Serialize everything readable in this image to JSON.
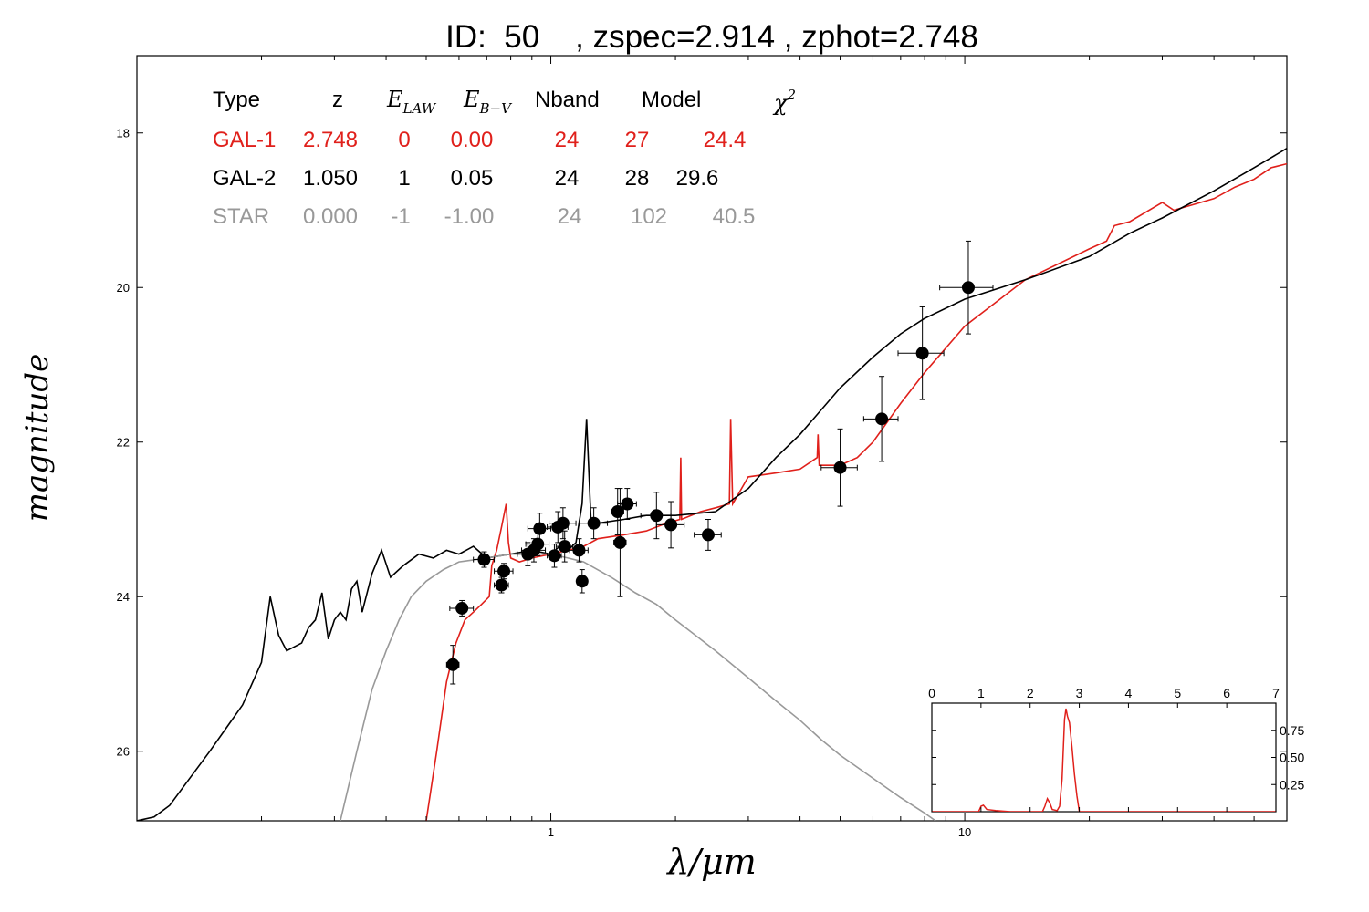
{
  "chart_data": [
    {
      "type": "line",
      "title": "ID:  50    , zspec=2.914 , zphot=2.748",
      "xlabel": "λ/μm",
      "ylabel": "magnitude",
      "x_scale": "log",
      "xlim": [
        0.1,
        60
      ],
      "ylim": [
        26.9,
        17.0
      ],
      "y_inverted": true,
      "grid": false,
      "x_ticks": [
        1,
        10
      ],
      "x_tick_labels": [
        "1",
        "10"
      ],
      "y_ticks": [
        18,
        20,
        22,
        24,
        26
      ],
      "y_tick_labels": [
        "18",
        "20",
        "22",
        "24",
        "26"
      ],
      "legend_table": {
        "headers": [
          "Type",
          "z",
          "E_LAW",
          "E_B−V",
          "Nband",
          "Model",
          "χ²"
        ],
        "rows": [
          {
            "cells": [
              "GAL-1",
              "2.748",
              "0",
              "0.00",
              "24",
              "27",
              "24.4"
            ],
            "color": "#e0201b"
          },
          {
            "cells": [
              "GAL-2",
              "1.050",
              "1",
              "0.05",
              "24",
              "28",
              "29.6"
            ],
            "color": "#000000"
          },
          {
            "cells": [
              "STAR",
              "0.000",
              "-1",
              "-1.00",
              "24",
              "102",
              "40.5"
            ],
            "color": "#999999"
          }
        ]
      },
      "series": [
        {
          "name": "GAL-1",
          "color": "#e0201b",
          "points": [
            [
              0.5,
              26.9
            ],
            [
              0.53,
              26.0
            ],
            [
              0.56,
              25.1
            ],
            [
              0.59,
              24.6
            ],
            [
              0.62,
              24.3
            ],
            [
              0.65,
              24.2
            ],
            [
              0.68,
              24.1
            ],
            [
              0.71,
              24.0
            ],
            [
              0.72,
              23.6
            ],
            [
              0.74,
              23.4
            ],
            [
              0.76,
              23.1
            ],
            [
              0.78,
              22.8
            ],
            [
              0.79,
              23.3
            ],
            [
              0.8,
              23.5
            ],
            [
              0.84,
              23.55
            ],
            [
              0.9,
              23.5
            ],
            [
              1.0,
              23.45
            ],
            [
              1.1,
              23.4
            ],
            [
              1.2,
              23.35
            ],
            [
              1.3,
              23.25
            ],
            [
              1.5,
              23.2
            ],
            [
              1.7,
              23.15
            ],
            [
              1.9,
              23.05
            ],
            [
              2.05,
              23.0
            ],
            [
              2.06,
              22.2
            ],
            [
              2.07,
              23.0
            ],
            [
              2.3,
              22.9
            ],
            [
              2.5,
              22.85
            ],
            [
              2.7,
              22.8
            ],
            [
              2.72,
              21.7
            ],
            [
              2.75,
              22.8
            ],
            [
              3.0,
              22.45
            ],
            [
              3.5,
              22.4
            ],
            [
              4.0,
              22.35
            ],
            [
              4.4,
              22.2
            ],
            [
              4.42,
              21.9
            ],
            [
              4.45,
              22.3
            ],
            [
              5.0,
              22.3
            ],
            [
              5.5,
              22.2
            ],
            [
              6.0,
              22.0
            ],
            [
              7.0,
              21.5
            ],
            [
              8.0,
              21.1
            ],
            [
              10.0,
              20.5
            ],
            [
              14.0,
              19.9
            ],
            [
              20.0,
              19.5
            ],
            [
              22.0,
              19.4
            ],
            [
              23.0,
              19.2
            ],
            [
              25.0,
              19.15
            ],
            [
              30.0,
              18.9
            ],
            [
              32.0,
              19.0
            ],
            [
              40.0,
              18.85
            ],
            [
              45.0,
              18.7
            ],
            [
              50.0,
              18.6
            ],
            [
              55.0,
              18.45
            ],
            [
              60.0,
              18.4
            ]
          ]
        },
        {
          "name": "GAL-2",
          "color": "#000000",
          "points": [
            [
              0.1,
              26.9
            ],
            [
              0.11,
              26.85
            ],
            [
              0.12,
              26.7
            ],
            [
              0.15,
              26.0
            ],
            [
              0.18,
              25.4
            ],
            [
              0.2,
              24.85
            ],
            [
              0.21,
              24.0
            ],
            [
              0.22,
              24.5
            ],
            [
              0.23,
              24.7
            ],
            [
              0.25,
              24.6
            ],
            [
              0.26,
              24.4
            ],
            [
              0.27,
              24.3
            ],
            [
              0.28,
              23.95
            ],
            [
              0.29,
              24.55
            ],
            [
              0.3,
              24.3
            ],
            [
              0.31,
              24.2
            ],
            [
              0.32,
              24.3
            ],
            [
              0.33,
              23.9
            ],
            [
              0.34,
              23.8
            ],
            [
              0.35,
              24.2
            ],
            [
              0.37,
              23.7
            ],
            [
              0.39,
              23.4
            ],
            [
              0.41,
              23.75
            ],
            [
              0.44,
              23.6
            ],
            [
              0.48,
              23.45
            ],
            [
              0.52,
              23.5
            ],
            [
              0.56,
              23.4
            ],
            [
              0.6,
              23.45
            ],
            [
              0.65,
              23.35
            ],
            [
              0.7,
              23.5
            ],
            [
              0.8,
              23.45
            ],
            [
              0.9,
              23.4
            ],
            [
              1.0,
              23.45
            ],
            [
              1.05,
              23.35
            ],
            [
              1.1,
              23.4
            ],
            [
              1.15,
              23.3
            ],
            [
              1.19,
              22.8
            ],
            [
              1.22,
              21.7
            ],
            [
              1.25,
              23.0
            ],
            [
              1.3,
              23.05
            ],
            [
              1.5,
              23.0
            ],
            [
              1.7,
              22.95
            ],
            [
              2.0,
              22.95
            ],
            [
              2.5,
              22.9
            ],
            [
              3.0,
              22.6
            ],
            [
              3.5,
              22.2
            ],
            [
              4.0,
              21.9
            ],
            [
              5.0,
              21.3
            ],
            [
              6.0,
              20.9
            ],
            [
              7.0,
              20.6
            ],
            [
              8.0,
              20.4
            ],
            [
              10.0,
              20.15
            ],
            [
              14.0,
              19.9
            ],
            [
              20.0,
              19.6
            ],
            [
              25.0,
              19.3
            ],
            [
              30.0,
              19.1
            ],
            [
              40.0,
              18.75
            ],
            [
              50.0,
              18.45
            ],
            [
              60.0,
              18.2
            ]
          ]
        },
        {
          "name": "STAR",
          "color": "#999999",
          "points": [
            [
              0.31,
              26.9
            ],
            [
              0.34,
              26.0
            ],
            [
              0.37,
              25.2
            ],
            [
              0.4,
              24.7
            ],
            [
              0.43,
              24.3
            ],
            [
              0.46,
              24.0
            ],
            [
              0.5,
              23.8
            ],
            [
              0.55,
              23.65
            ],
            [
              0.6,
              23.55
            ],
            [
              0.7,
              23.5
            ],
            [
              0.8,
              23.45
            ],
            [
              0.9,
              23.45
            ],
            [
              1.0,
              23.45
            ],
            [
              1.1,
              23.5
            ],
            [
              1.2,
              23.55
            ],
            [
              1.4,
              23.75
            ],
            [
              1.6,
              23.95
            ],
            [
              1.8,
              24.1
            ],
            [
              2.0,
              24.3
            ],
            [
              2.5,
              24.7
            ],
            [
              3.0,
              25.05
            ],
            [
              3.5,
              25.35
            ],
            [
              4.0,
              25.6
            ],
            [
              4.5,
              25.85
            ],
            [
              5.0,
              26.05
            ],
            [
              6.0,
              26.35
            ],
            [
              7.0,
              26.6
            ],
            [
              8.0,
              26.8
            ],
            [
              8.5,
              26.9
            ]
          ]
        }
      ],
      "observations": [
        {
          "x": 0.58,
          "y": 24.88,
          "xerr": 0.02,
          "yerr": 0.25
        },
        {
          "x": 0.61,
          "y": 24.15,
          "xerr": 0.04,
          "yerr": 0.1
        },
        {
          "x": 0.69,
          "y": 23.52,
          "xerr": 0.04,
          "yerr": 0.1
        },
        {
          "x": 0.76,
          "y": 23.85,
          "xerr": 0.03,
          "yerr": 0.1
        },
        {
          "x": 0.77,
          "y": 23.67,
          "xerr": 0.04,
          "yerr": 0.1
        },
        {
          "x": 0.88,
          "y": 23.45,
          "xerr": 0.05,
          "yerr": 0.15
        },
        {
          "x": 0.91,
          "y": 23.4,
          "xerr": 0.06,
          "yerr": 0.15
        },
        {
          "x": 0.93,
          "y": 23.32,
          "xerr": 0.06,
          "yerr": 0.15
        },
        {
          "x": 0.94,
          "y": 23.12,
          "xerr": 0.06,
          "yerr": 0.2
        },
        {
          "x": 1.02,
          "y": 23.47,
          "xerr": 0.04,
          "yerr": 0.15
        },
        {
          "x": 1.04,
          "y": 23.1,
          "xerr": 0.06,
          "yerr": 0.2
        },
        {
          "x": 1.07,
          "y": 23.05,
          "xerr": 0.08,
          "yerr": 0.2
        },
        {
          "x": 1.08,
          "y": 23.35,
          "xerr": 0.05,
          "yerr": 0.2
        },
        {
          "x": 1.17,
          "y": 23.4,
          "xerr": 0.06,
          "yerr": 0.15
        },
        {
          "x": 1.19,
          "y": 23.8,
          "xerr": 0.03,
          "yerr": 0.15
        },
        {
          "x": 1.27,
          "y": 23.05,
          "xerr": 0.1,
          "yerr": 0.2
        },
        {
          "x": 1.45,
          "y": 22.9,
          "xerr": 0.05,
          "yerr": 0.3
        },
        {
          "x": 1.47,
          "y": 23.3,
          "xerr": 0.05,
          "yerr": 0.7
        },
        {
          "x": 1.53,
          "y": 22.8,
          "xerr": 0.08,
          "yerr": 0.2
        },
        {
          "x": 1.8,
          "y": 22.95,
          "xerr": 0.15,
          "yerr": 0.3
        },
        {
          "x": 1.95,
          "y": 23.07,
          "xerr": 0.15,
          "yerr": 0.3
        },
        {
          "x": 2.4,
          "y": 23.2,
          "xerr": 0.18,
          "yerr": 0.2
        },
        {
          "x": 5.0,
          "y": 22.33,
          "xerr": 0.5,
          "yerr": 0.5
        },
        {
          "x": 6.3,
          "y": 21.7,
          "xerr": 0.6,
          "yerr": 0.55
        },
        {
          "x": 7.9,
          "y": 20.85,
          "xerr": 1.0,
          "yerr": 0.6
        },
        {
          "x": 10.2,
          "y": 20.0,
          "xerr": 1.5,
          "yerr": 0.6
        }
      ]
    },
    {
      "type": "line",
      "xlim": [
        0,
        7
      ],
      "ylim": [
        0,
        1.0
      ],
      "x_ticks": [
        0,
        1,
        2,
        3,
        4,
        5,
        6,
        7
      ],
      "x_tick_labels": [
        "0",
        "1",
        "2",
        "3",
        "4",
        "5",
        "6",
        "7"
      ],
      "y_ticks": [
        0.25,
        0.5,
        0.75
      ],
      "y_tick_labels": [
        "0.25",
        "0.50",
        "0.75"
      ],
      "series": [
        {
          "color": "#e0201b",
          "points": [
            [
              0,
              0.0
            ],
            [
              0.95,
              0.0
            ],
            [
              1.0,
              0.05
            ],
            [
              1.05,
              0.06
            ],
            [
              1.12,
              0.02
            ],
            [
              1.3,
              0.01
            ],
            [
              1.6,
              0.0
            ],
            [
              2.25,
              0.0
            ],
            [
              2.3,
              0.05
            ],
            [
              2.35,
              0.12
            ],
            [
              2.4,
              0.08
            ],
            [
              2.45,
              0.02
            ],
            [
              2.55,
              0.01
            ],
            [
              2.6,
              0.05
            ],
            [
              2.65,
              0.3
            ],
            [
              2.7,
              0.85
            ],
            [
              2.73,
              0.95
            ],
            [
              2.76,
              0.88
            ],
            [
              2.8,
              0.82
            ],
            [
              2.85,
              0.6
            ],
            [
              2.9,
              0.35
            ],
            [
              2.95,
              0.15
            ],
            [
              3.0,
              0.0
            ],
            [
              7,
              0.0
            ]
          ]
        }
      ]
    }
  ]
}
